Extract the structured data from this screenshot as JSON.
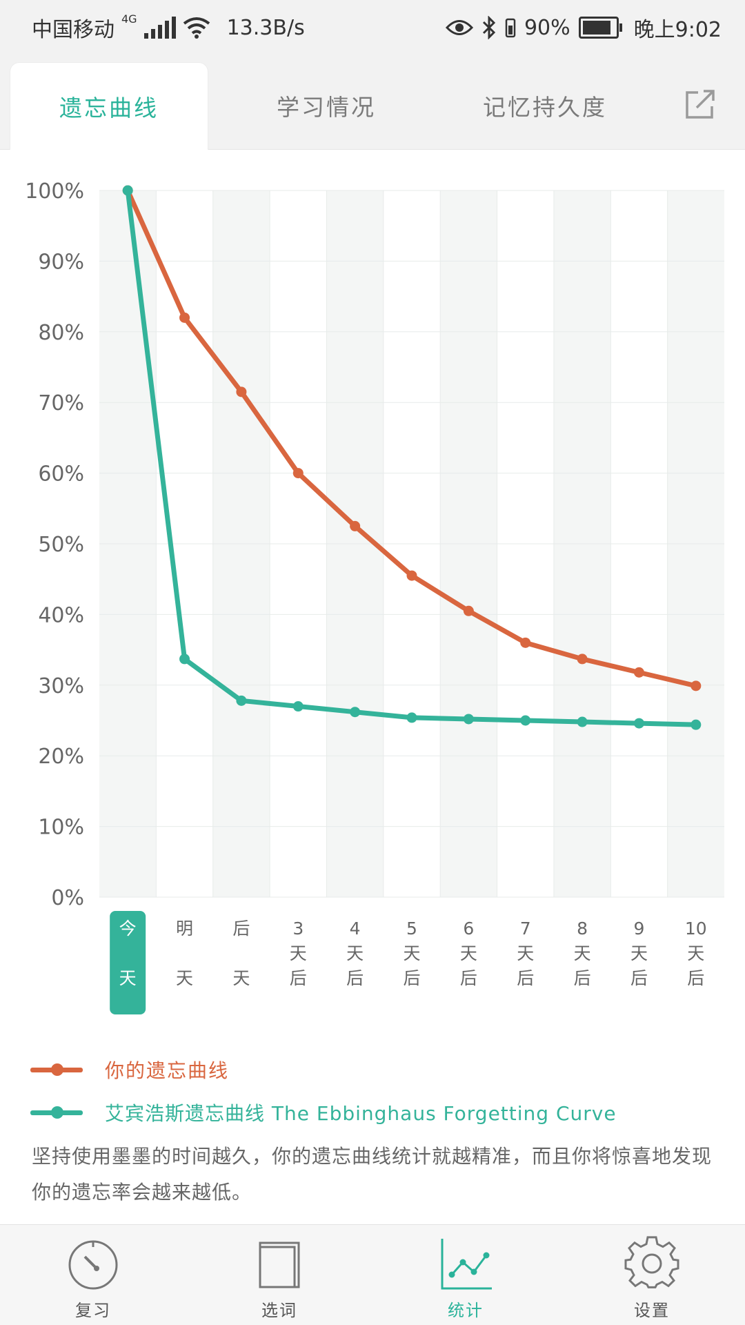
{
  "status_bar": {
    "carrier": "中国移动",
    "network": "4G",
    "speed": "13.3B/s",
    "battery": "90%",
    "time": "晚上9:02"
  },
  "tabs": [
    {
      "label": "遗忘曲线",
      "active": true
    },
    {
      "label": "学习情况",
      "active": false
    },
    {
      "label": "记忆持久度",
      "active": false
    }
  ],
  "chart_data": {
    "type": "line",
    "categories": [
      [
        "今",
        "天"
      ],
      [
        "明",
        "天"
      ],
      [
        "后",
        "天"
      ],
      [
        "3",
        "天",
        "后"
      ],
      [
        "4",
        "天",
        "后"
      ],
      [
        "5",
        "天",
        "后"
      ],
      [
        "6",
        "天",
        "后"
      ],
      [
        "7",
        "天",
        "后"
      ],
      [
        "8",
        "天",
        "后"
      ],
      [
        "9",
        "天",
        "后"
      ],
      [
        "10",
        "天",
        "后"
      ]
    ],
    "selected_index": 0,
    "ylim": [
      0,
      100
    ],
    "yticks": [
      "0%",
      "10%",
      "20%",
      "30%",
      "40%",
      "50%",
      "60%",
      "70%",
      "80%",
      "90%",
      "100%"
    ],
    "series": [
      {
        "name": "你的遗忘曲线",
        "color": "#d9663f",
        "values": [
          100,
          82,
          71.5,
          60,
          52.5,
          45.5,
          40.5,
          36,
          33.7,
          31.8,
          29.9
        ]
      },
      {
        "name": "艾宾浩斯遗忘曲线 The Ebbinghaus Forgetting Curve",
        "color": "#34b39a",
        "values": [
          100,
          33.7,
          27.8,
          27,
          26.2,
          25.4,
          25.2,
          25,
          24.8,
          24.6,
          24.4
        ]
      }
    ],
    "grid": true
  },
  "description": "坚持使用墨墨的时间越久，你的遗忘曲线统计就越精准，而且你将惊喜地发现你的遗忘率会越来越低。",
  "bottom_nav": [
    {
      "label": "复习",
      "icon": "dial-icon",
      "active": false
    },
    {
      "label": "选词",
      "icon": "book-icon",
      "active": false
    },
    {
      "label": "统计",
      "icon": "chart-icon",
      "active": true
    },
    {
      "label": "设置",
      "icon": "gear-icon",
      "active": false
    }
  ]
}
